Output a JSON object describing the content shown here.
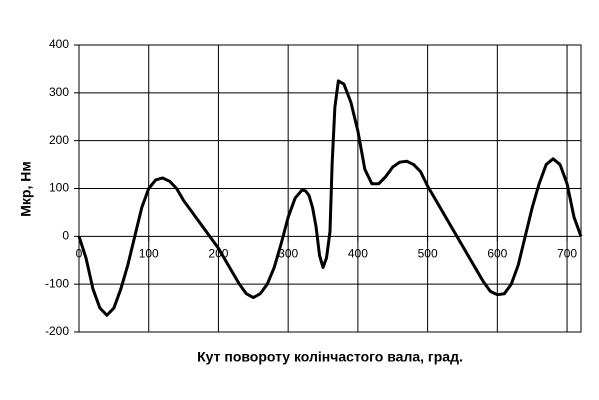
{
  "chart_data": {
    "type": "line",
    "x_label": "Кут повороту колінчастого вала, град.",
    "y_label": "Мкр, Нм",
    "xlim": [
      0,
      720
    ],
    "xticks": [
      0,
      100,
      200,
      300,
      400,
      500,
      600,
      700
    ],
    "ylim": [
      -200,
      400
    ],
    "yticks": [
      -200,
      -100,
      0,
      100,
      200,
      300,
      400
    ],
    "grid": true,
    "x": [
      0,
      10,
      20,
      30,
      40,
      50,
      60,
      70,
      80,
      90,
      100,
      110,
      120,
      130,
      140,
      150,
      160,
      170,
      180,
      190,
      200,
      210,
      220,
      230,
      240,
      250,
      260,
      270,
      280,
      290,
      300,
      310,
      320,
      325,
      330,
      335,
      340,
      345,
      350,
      355,
      360,
      363,
      367,
      372,
      380,
      390,
      400,
      410,
      420,
      430,
      440,
      450,
      460,
      470,
      480,
      490,
      500,
      510,
      520,
      530,
      540,
      550,
      560,
      570,
      580,
      590,
      600,
      610,
      620,
      630,
      640,
      650,
      660,
      670,
      680,
      690,
      700,
      710,
      720
    ],
    "series": [
      {
        "color": "#000000",
        "values": [
          0,
          -45,
          -110,
          -150,
          -165,
          -150,
          -110,
          -60,
          0,
          60,
          100,
          118,
          122,
          115,
          100,
          75,
          55,
          35,
          15,
          -5,
          -25,
          -50,
          -75,
          -100,
          -120,
          -128,
          -120,
          -100,
          -65,
          -15,
          40,
          80,
          97,
          95,
          85,
          60,
          20,
          -40,
          -65,
          -45,
          10,
          150,
          270,
          325,
          318,
          280,
          220,
          140,
          110,
          110,
          125,
          145,
          155,
          157,
          150,
          135,
          105,
          80,
          55,
          30,
          5,
          -20,
          -45,
          -70,
          -95,
          -115,
          -122,
          -120,
          -100,
          -60,
          0,
          60,
          110,
          150,
          162,
          150,
          110,
          40,
          0
        ]
      }
    ]
  }
}
